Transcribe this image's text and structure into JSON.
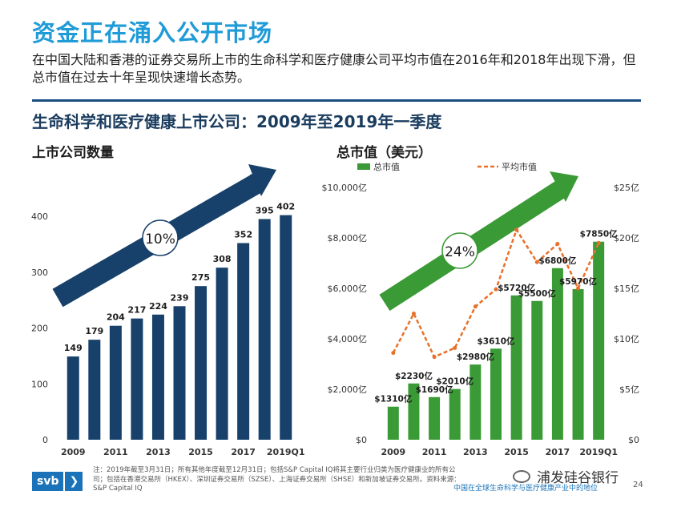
{
  "header": {
    "title": "资金正在涌入公开市场",
    "subtitle": "在中国大陆和香港的证券交易所上市的生命科学和医疗健康公司平均市值在2016年和2018年出现下滑，但总市值在过去十年呈现快速增长态势。",
    "section_title": "生命科学和医疗健康上市公司：2009年至2019年一季度"
  },
  "colors": {
    "navy": "#17416a",
    "green": "#3a9a35",
    "orange": "#e8702a",
    "title_blue": "#1f9bd7"
  },
  "chart_data": [
    {
      "type": "bar",
      "title": "上市公司数量",
      "categories": [
        "2009",
        "2010",
        "2011",
        "2012",
        "2013",
        "2014",
        "2015",
        "2016",
        "2017",
        "2018",
        "2019Q1"
      ],
      "tick_labels": [
        "2009",
        "2011",
        "2013",
        "2015",
        "2017",
        "2019Q1"
      ],
      "series": [
        {
          "values": [
            149,
            179,
            204,
            217,
            224,
            239,
            275,
            308,
            352,
            395,
            402
          ]
        }
      ],
      "data_labels": [
        "149",
        "179",
        "204",
        "217",
        "224",
        "239",
        "275",
        "308",
        "352",
        "395",
        "402"
      ],
      "ylim": [
        0,
        400
      ],
      "yticks": [
        "0",
        "100",
        "200",
        "300",
        "400"
      ],
      "growth_badge": "10%",
      "grid": false
    },
    {
      "type": "bar+line",
      "title": "总市值（美元）",
      "categories": [
        "2009",
        "2010",
        "2011",
        "2012",
        "2013",
        "2014",
        "2015",
        "2016",
        "2017",
        "2018",
        "2019Q1"
      ],
      "tick_labels": [
        "2009",
        "2011",
        "2013",
        "2015",
        "2017",
        "2019Q1"
      ],
      "series": [
        {
          "name": "总市值",
          "type": "bar",
          "axis": "left",
          "values": [
            1310,
            2230,
            1690,
            2010,
            2980,
            3610,
            5720,
            5500,
            6800,
            5970,
            7850
          ]
        },
        {
          "name": "平均市值",
          "type": "line",
          "axis": "right",
          "values": [
            8.6,
            12.5,
            8.2,
            9.1,
            13.2,
            14.9,
            20.8,
            17.6,
            19.4,
            15.0,
            19.5
          ]
        }
      ],
      "data_labels": [
        "$1310亿",
        "$2230亿",
        "$1690亿",
        "$2010亿",
        "$2980亿",
        "$3610亿",
        "$5720亿",
        "$5500亿",
        "$6800亿",
        "$5970亿",
        "$7850亿"
      ],
      "ylim_left": [
        0,
        10000
      ],
      "yticks_left": [
        "$0",
        "$2,000亿",
        "$4,000亿",
        "$6,000亿",
        "$8,000亿",
        "$10,000亿"
      ],
      "ylim_right": [
        0,
        25
      ],
      "yticks_right": [
        "$0",
        "$5亿",
        "$10亿",
        "$15亿",
        "$20亿",
        "$25亿"
      ],
      "legend_position": "top",
      "growth_badge": "24%",
      "grid": false
    }
  ],
  "footer": {
    "note": "注：2019年截至3月31日；所有其他年度截至12月31日；包括S&P Capital IQ将其主要行业归类为医疗健康业的所有公司；包括在香港交易所（HKEX）、深圳证券交易所（SZSE）、上海证券交易所（SHSE）和新加坡证券交易所。资料来源：S&P Capital IQ",
    "logo": "svb",
    "logo_chevron": "❯",
    "report_title": "中国在全球生命科学与医疗健康产业中的地位",
    "page_number": "24",
    "wechat_account": "浦发硅谷银行"
  }
}
